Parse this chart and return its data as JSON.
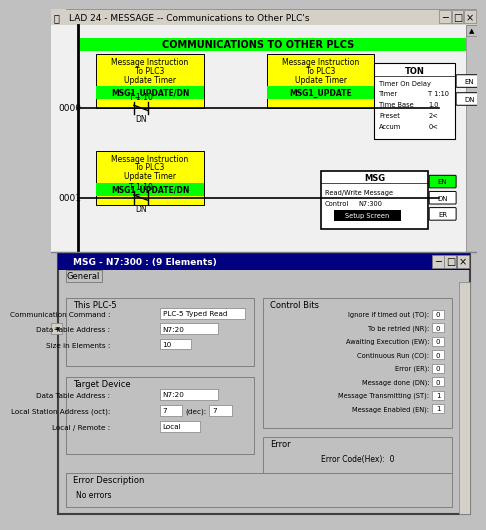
{
  "title_bar": "LAD 24 - MESSAGE -- Communications to Other PLC's",
  "bg_color": "#c0c0c0",
  "ladder_bg": "#ffffff",
  "green_header": "COMMUNICATIONS TO OTHER PLCS",
  "green_color": "#00ff00",
  "yellow_color": "#ffff00",
  "dark_green": "#008000",
  "rung0": "0000",
  "rung1": "0001",
  "msg_title": "MSG - N7:300 : (9 Elements)",
  "dialog_bg": "#c0c0c0",
  "navy_title": "#000080",
  "white": "#ffffff",
  "black": "#000000"
}
